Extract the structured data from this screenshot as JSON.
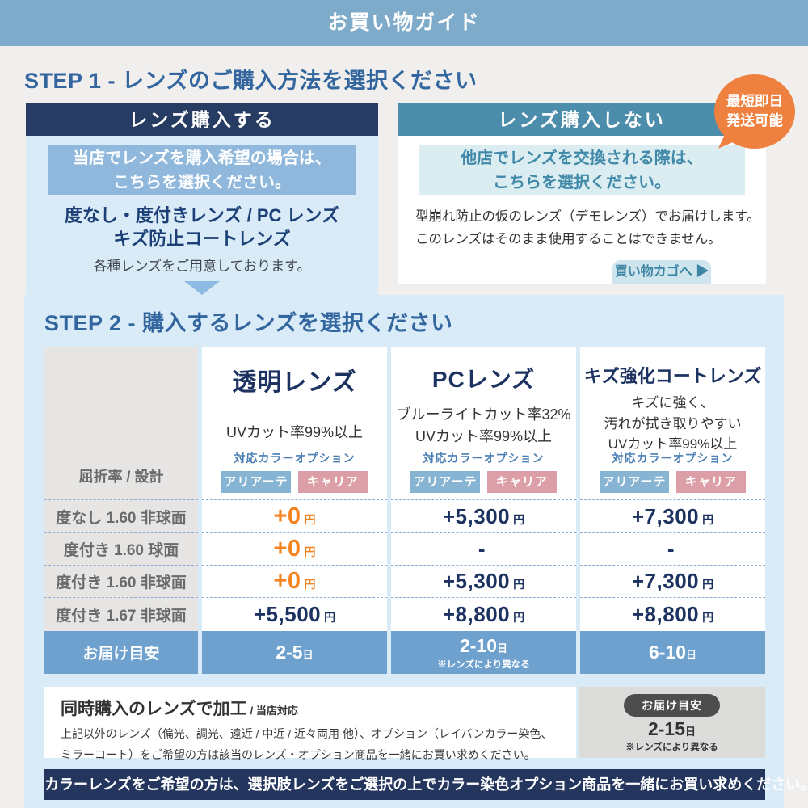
{
  "page_title": "お買い物ガイド",
  "colors": {
    "top_bar": "#7fabca",
    "navy_header": "#263c63",
    "teal_header": "#4c8dac",
    "band": "#d8ebf7",
    "badge_orange": "#ef8140",
    "price_orange": "#f5831f",
    "price_navy": "#1c3260",
    "delivery_blue": "#6fa1cf",
    "bottom_navy": "#24355e",
    "option_blue": "#86b4d2",
    "option_pink": "#dd9fa7"
  },
  "step1": {
    "heading": "STEP 1 - レンズのご購入方法を選択ください",
    "buy": {
      "header": "レンズ購入する",
      "highlight_line1": "当店でレンズを購入希望の場合は、",
      "highlight_line2": "こちらを選択ください。",
      "lens_line1": "度なし・度付きレンズ / PC レンズ",
      "lens_line2": "キズ防止コートレンズ",
      "note": "各種レンズをご用意しております。"
    },
    "no_buy": {
      "header": "レンズ購入しない",
      "highlight_line1": "他店でレンズを交換される際は、",
      "highlight_line2": "こちらを選択ください。",
      "body_line1": "型崩れ防止の仮のレンズ（デモレンズ）でお届けします。",
      "body_line2": "このレンズはそのまま使用することはできません。",
      "cart_button": "買い物カゴへ",
      "cart_arrow_icon": "▶"
    },
    "badge": {
      "line1": "最短即日",
      "line2": "発送可能"
    }
  },
  "step2": {
    "heading": "STEP 2 - 購入するレンズを選択ください",
    "table": {
      "corner_label": "屈折率 / 設計",
      "color_option_label": "対応カラーオプション",
      "badge_blue": "アリアーテ",
      "badge_pink": "キャリア",
      "columns": [
        {
          "title": "透明レンズ",
          "desc": [
            "UVカット率99%以上",
            "",
            ""
          ]
        },
        {
          "title": "PCレンズ",
          "desc": [
            "ブルーライトカット率32%",
            "UVカット率99%以上",
            ""
          ]
        },
        {
          "title": "キズ強化コートレンズ",
          "desc": [
            "キズに強く、",
            "汚れが拭き取りやすい",
            "UVカット率99%以上"
          ]
        }
      ],
      "rows": [
        {
          "label": "度なし 1.60 非球面",
          "prices": [
            {
              "value": "+0",
              "unit": "円"
            },
            {
              "value": "+5,300",
              "unit": "円"
            },
            {
              "value": "+7,300",
              "unit": "円"
            }
          ]
        },
        {
          "label": "度付き 1.60 球面",
          "prices": [
            {
              "value": "+0",
              "unit": "円"
            },
            {
              "value": "-",
              "unit": ""
            },
            {
              "value": "-",
              "unit": ""
            }
          ]
        },
        {
          "label": "度付き 1.60 非球面",
          "prices": [
            {
              "value": "+0",
              "unit": "円"
            },
            {
              "value": "+5,300",
              "unit": "円"
            },
            {
              "value": "+7,300",
              "unit": "円"
            }
          ]
        },
        {
          "label": "度付き 1.67 非球面",
          "prices": [
            {
              "value": "+5,500",
              "unit": "円"
            },
            {
              "value": "+8,800",
              "unit": "円"
            },
            {
              "value": "+8,800",
              "unit": "円"
            }
          ]
        }
      ],
      "delivery": {
        "label": "お届け目安",
        "values": [
          {
            "value": "2-5",
            "unit": "日",
            "note": ""
          },
          {
            "value": "2-10",
            "unit": "日",
            "note": "※レンズにより異なる"
          },
          {
            "value": "6-10",
            "unit": "日",
            "note": ""
          }
        ]
      }
    }
  },
  "footer": {
    "box_title": "同時購入のレンズで加工",
    "box_title_suffix": "/ 当店対応",
    "box_line1": "上記以外のレンズ（偏光、調光、遠近 / 中近 / 近々両用 他）、オプション（レイバンカラー染色、",
    "box_line2": "ミラーコート）をご希望の方は該当のレンズ・オプション商品を一緒にお買い求めください。",
    "delivery_pill": "お届け目安",
    "delivery_value": "2-15",
    "delivery_unit": "日",
    "delivery_note": "※レンズにより異なる",
    "bottom_bar": "カラーレンズをご希望の方は、選択肢レンズをご選択の上でカラー染色オプション商品を一緒にお買い求めください。"
  }
}
